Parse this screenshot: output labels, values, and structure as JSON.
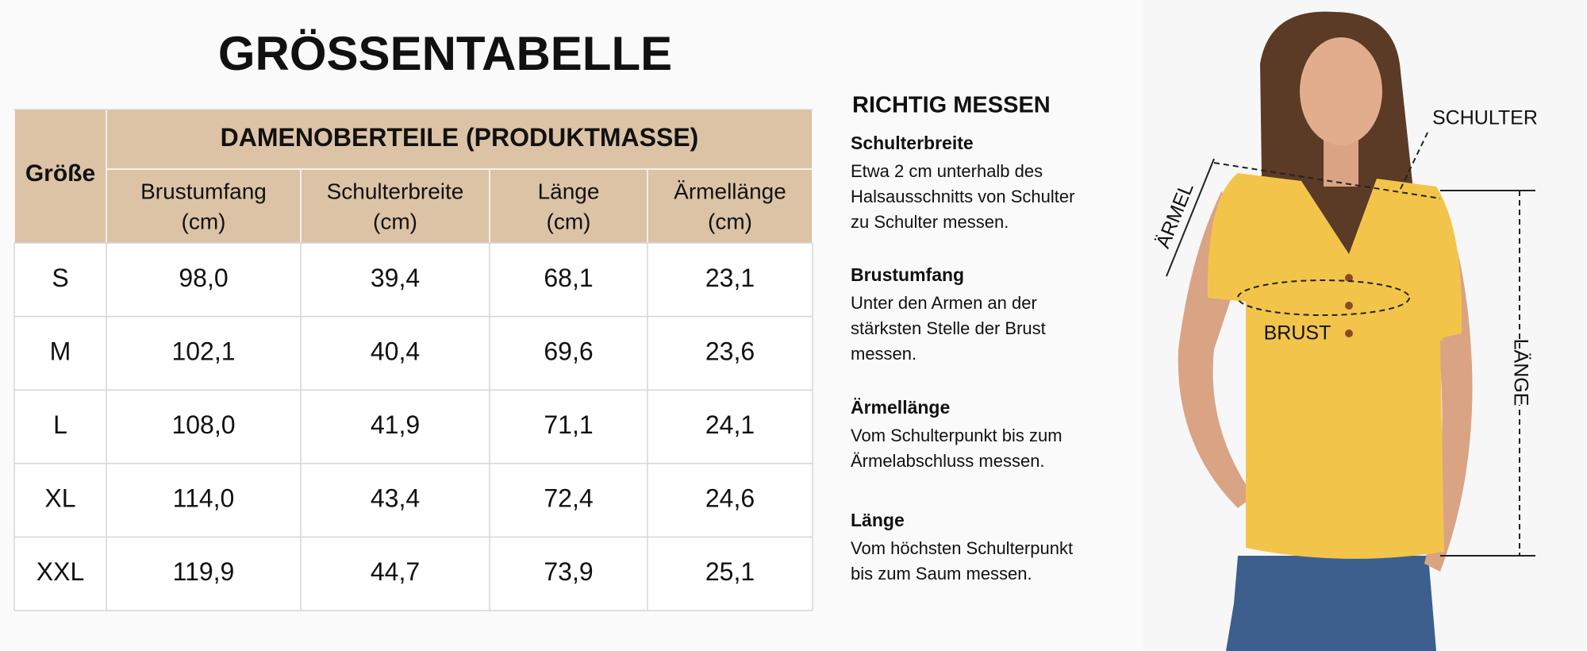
{
  "title": "GRÖSSENTABELLE",
  "table": {
    "size_header": "Größe",
    "group_header": "DAMENOBERTEILE (PRODUKTMASSE)",
    "columns": [
      {
        "name": "Brustumfang",
        "unit": "(cm)"
      },
      {
        "name": "Schulterbreite",
        "unit": "(cm)"
      },
      {
        "name": "Länge",
        "unit": "(cm)"
      },
      {
        "name": "Ärmellänge",
        "unit": "(cm)"
      }
    ],
    "rows": [
      [
        "S",
        "98,0",
        "39,4",
        "68,1",
        "23,1"
      ],
      [
        "M",
        "102,1",
        "40,4",
        "69,6",
        "23,6"
      ],
      [
        "L",
        "108,0",
        "41,9",
        "71,1",
        "24,1"
      ],
      [
        "XL",
        "114,0",
        "43,4",
        "72,4",
        "24,6"
      ],
      [
        "XXL",
        "119,9",
        "44,7",
        "73,9",
        "25,1"
      ]
    ]
  },
  "guide": {
    "title": "RICHTIG MESSEN",
    "items": [
      {
        "heading": "Schulterbreite",
        "lines": [
          "Etwa 2 cm unterhalb des",
          "Halsausschnitts von Schulter",
          "zu Schulter messen."
        ]
      },
      {
        "heading": "Brustumfang",
        "lines": [
          "Unter den Armen an der",
          "stärksten Stelle der Brust",
          "messen."
        ]
      },
      {
        "heading": "Ärmellänge",
        "lines": [
          "Vom Schulterpunkt bis zum",
          "Ärmelabschluss messen."
        ]
      },
      {
        "heading": "Länge",
        "lines": [
          "Vom höchsten Schulterpunkt",
          "bis zum Saum messen."
        ]
      }
    ]
  },
  "figure": {
    "labels": {
      "shoulder": "SCHULTER",
      "sleeve": "ÄRMEL",
      "chest": "BRUST",
      "length": "LÄNGE"
    }
  }
}
